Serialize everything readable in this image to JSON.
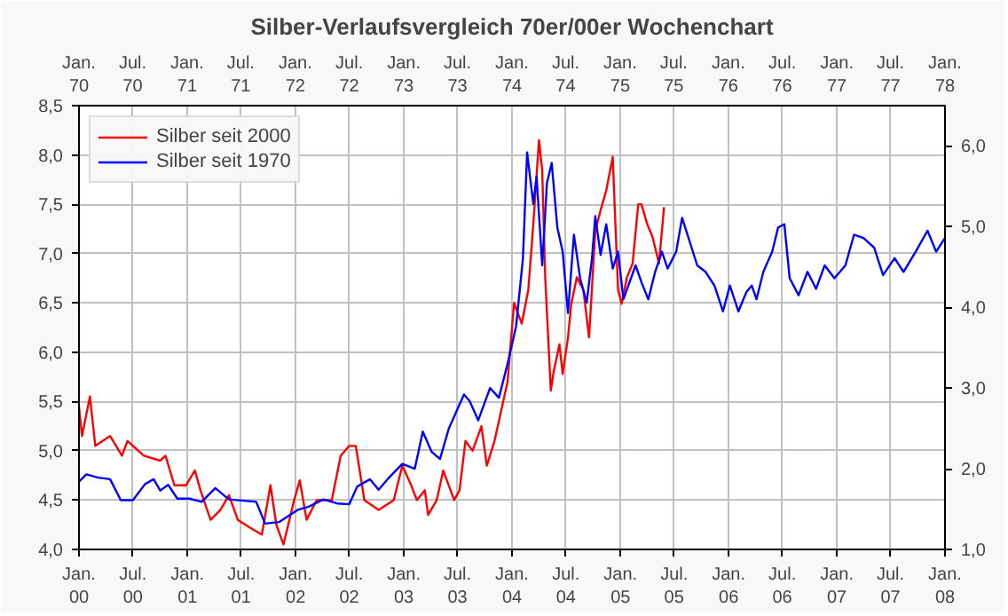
{
  "chart_data": {
    "type": "line",
    "title": "Silber-Verlaufsvergleich 70er/00er Wochenchart",
    "xlim": [
      "2000-01",
      "2008-01"
    ],
    "xticks": [
      {
        "value": "2000-01",
        "label": "Jan.\n00"
      },
      {
        "value": "2000-07",
        "label": "Jul.\n00"
      },
      {
        "value": "2001-01",
        "label": "Jan.\n01"
      },
      {
        "value": "2001-07",
        "label": "Jul.\n01"
      },
      {
        "value": "2002-01",
        "label": "Jan.\n02"
      },
      {
        "value": "2002-07",
        "label": "Jul.\n02"
      },
      {
        "value": "2003-01",
        "label": "Jan.\n03"
      },
      {
        "value": "2003-07",
        "label": "Jul.\n03"
      },
      {
        "value": "2004-01",
        "label": "Jan.\n04"
      },
      {
        "value": "2004-07",
        "label": "Jul.\n04"
      },
      {
        "value": "2005-01",
        "label": "Jan.\n05"
      },
      {
        "value": "2005-07",
        "label": "Jul.\n05"
      },
      {
        "value": "2006-01",
        "label": "Jan.\n06"
      },
      {
        "value": "2006-07",
        "label": "Jul.\n06"
      },
      {
        "value": "2007-01",
        "label": "Jan.\n07"
      },
      {
        "value": "2007-07",
        "label": "Jul.\n07"
      },
      {
        "value": "2008-01",
        "label": "Jan.\n08"
      }
    ],
    "x2lim": [
      "1970-01",
      "1978-01"
    ],
    "x2ticks": [
      {
        "value": "1970-01",
        "label": "Jan.\n70"
      },
      {
        "value": "1970-07",
        "label": "Jul.\n70"
      },
      {
        "value": "1971-01",
        "label": "Jan.\n71"
      },
      {
        "value": "1971-07",
        "label": "Jul.\n71"
      },
      {
        "value": "1972-01",
        "label": "Jan.\n72"
      },
      {
        "value": "1972-07",
        "label": "Jul.\n72"
      },
      {
        "value": "1973-01",
        "label": "Jan.\n73"
      },
      {
        "value": "1973-07",
        "label": "Jul.\n73"
      },
      {
        "value": "1974-01",
        "label": "Jan.\n74"
      },
      {
        "value": "1974-07",
        "label": "Jul.\n74"
      },
      {
        "value": "1975-01",
        "label": "Jan.\n75"
      },
      {
        "value": "1975-07",
        "label": "Jul.\n75"
      },
      {
        "value": "1976-01",
        "label": "Jan.\n76"
      },
      {
        "value": "1976-07",
        "label": "Jul.\n76"
      },
      {
        "value": "1977-01",
        "label": "Jan.\n77"
      },
      {
        "value": "1977-07",
        "label": "Jul.\n77"
      },
      {
        "value": "1978-01",
        "label": "Jan.\n78"
      }
    ],
    "ylim": [
      4.0,
      8.5
    ],
    "yticks": [
      {
        "value": 4.0,
        "label": "4,0"
      },
      {
        "value": 4.5,
        "label": "4,5"
      },
      {
        "value": 5.0,
        "label": "5,0"
      },
      {
        "value": 5.5,
        "label": "5,5"
      },
      {
        "value": 6.0,
        "label": "6,0"
      },
      {
        "value": 6.5,
        "label": "6,5"
      },
      {
        "value": 7.0,
        "label": "7,0"
      },
      {
        "value": 7.5,
        "label": "7,5"
      },
      {
        "value": 8.0,
        "label": "8,0"
      },
      {
        "value": 8.5,
        "label": "8,5"
      }
    ],
    "y2lim": [
      1.0,
      6.5
    ],
    "y2ticks": [
      {
        "value": 1.0,
        "label": "1,0"
      },
      {
        "value": 2.0,
        "label": "2,0"
      },
      {
        "value": 3.0,
        "label": "3,0"
      },
      {
        "value": 4.0,
        "label": "4,0"
      },
      {
        "value": 5.0,
        "label": "5,0"
      },
      {
        "value": 6.0,
        "label": "6,0"
      }
    ],
    "grid": true,
    "legend": "top left",
    "line_style": "solid",
    "series": [
      {
        "name": "Silber seit 2000",
        "color": "#ff0000",
        "x": [
          "2000-01-01",
          "2000-01-11",
          "2000-02-07",
          "2000-02-25",
          "2000-04-15",
          "2000-05-25",
          "2000-06-13",
          "2000-08-07",
          "2000-10-01",
          "2000-10-19",
          "2000-11-18",
          "2000-12-27",
          "2001-01-26",
          "2001-02-14",
          "2001-03-20",
          "2001-04-22",
          "2001-05-21",
          "2001-06-20",
          "2001-08-11",
          "2001-09-09",
          "2001-10-08",
          "2001-10-28",
          "2001-11-21",
          "2001-12-27",
          "2002-01-15",
          "2002-02-07",
          "2002-03-13",
          "2002-05-03",
          "2002-06-02",
          "2002-07-01",
          "2002-07-23",
          "2002-08-21",
          "2002-10-08",
          "2002-11-28",
          "2002-12-27",
          "2003-01-26",
          "2003-02-14",
          "2003-03-13",
          "2003-03-24",
          "2003-04-22",
          "2003-05-14",
          "2003-06-20",
          "2003-07-08",
          "2003-07-28",
          "2003-08-21",
          "2003-09-20",
          "2003-10-08",
          "2003-11-03",
          "2003-11-25",
          "2003-12-17",
          "2004-01-08",
          "2004-02-03",
          "2004-02-25",
          "2004-03-13",
          "2004-04-01",
          "2004-04-12",
          "2004-04-22",
          "2004-05-11",
          "2004-05-21",
          "2004-06-09",
          "2004-06-20",
          "2004-07-08",
          "2004-07-19",
          "2004-08-07",
          "2004-08-29",
          "2004-09-17",
          "2004-10-08",
          "2004-10-26",
          "2004-11-14",
          "2004-12-06",
          "2004-12-13",
          "2004-12-24",
          "2005-01-05",
          "2005-01-23",
          "2005-02-11",
          "2005-03-02",
          "2005-03-13",
          "2005-04-01",
          "2005-04-19",
          "2005-05-11",
          "2005-05-28"
        ],
        "values": [
          5.45,
          5.15,
          5.55,
          5.05,
          5.15,
          4.95,
          5.1,
          4.95,
          4.9,
          4.95,
          4.65,
          4.65,
          4.8,
          4.6,
          4.3,
          4.4,
          4.55,
          4.3,
          4.2,
          4.15,
          4.65,
          4.25,
          4.05,
          4.5,
          4.7,
          4.3,
          4.5,
          4.5,
          4.95,
          5.05,
          5.05,
          4.5,
          4.4,
          4.5,
          4.85,
          4.65,
          4.5,
          4.6,
          4.35,
          4.5,
          4.8,
          4.5,
          4.6,
          5.1,
          5.0,
          5.25,
          4.85,
          5.1,
          5.4,
          5.7,
          6.5,
          6.29,
          6.63,
          7.3,
          8.15,
          7.84,
          6.76,
          5.61,
          5.81,
          6.08,
          5.78,
          6.15,
          6.49,
          6.76,
          6.63,
          6.15,
          7.23,
          7.44,
          7.64,
          7.98,
          7.44,
          6.63,
          6.49,
          6.76,
          6.9,
          7.5,
          7.5,
          7.3,
          7.17,
          6.9,
          7.47
        ]
      },
      {
        "name": "Silber seit 1970",
        "color": "#0000ff",
        "axis": "y2",
        "x": [
          "2000-01-01",
          "2000-01-26",
          "2000-03-06",
          "2000-04-15",
          "2000-05-21",
          "2000-07-01",
          "2000-08-11",
          "2000-09-09",
          "2000-10-01",
          "2000-10-28",
          "2000-11-28",
          "2001-01-08",
          "2001-02-18",
          "2001-04-05",
          "2001-05-21",
          "2001-08-21",
          "2001-09-20",
          "2001-11-07",
          "2002-01-08",
          "2002-02-14",
          "2002-04-05",
          "2002-05-21",
          "2002-07-01",
          "2002-07-28",
          "2002-09-09",
          "2002-10-08",
          "2002-11-07",
          "2002-12-27",
          "2003-02-07",
          "2003-03-06",
          "2003-04-05",
          "2003-05-03",
          "2003-06-02",
          "2003-07-23",
          "2003-08-11",
          "2003-09-09",
          "2003-10-19",
          "2003-11-18",
          "2003-12-17",
          "2004-01-15",
          "2004-02-07",
          "2004-02-21",
          "2004-03-13",
          "2004-03-24",
          "2004-04-12",
          "2004-04-28",
          "2004-05-14",
          "2004-06-02",
          "2004-06-20",
          "2004-07-08",
          "2004-07-28",
          "2004-08-18",
          "2004-09-09",
          "2004-09-27",
          "2004-10-08",
          "2004-10-26",
          "2004-11-14",
          "2004-12-06",
          "2004-12-24",
          "2005-01-11",
          "2005-02-21",
          "2005-03-13",
          "2005-04-05",
          "2005-04-28",
          "2005-05-21",
          "2005-06-09",
          "2005-07-08",
          "2005-07-28",
          "2005-08-29",
          "2005-09-17",
          "2005-10-15",
          "2005-11-14",
          "2005-12-13",
          "2006-01-05",
          "2006-02-03",
          "2006-03-02",
          "2006-03-20",
          "2006-04-05",
          "2006-04-28",
          "2006-05-28",
          "2006-06-17",
          "2006-07-08",
          "2006-07-26",
          "2006-08-25",
          "2006-09-24",
          "2006-10-23",
          "2006-11-21",
          "2006-12-24",
          "2007-01-30",
          "2007-02-28",
          "2007-04-01",
          "2007-05-07",
          "2007-06-06",
          "2007-07-15",
          "2007-08-14",
          "2007-09-24",
          "2007-11-03",
          "2007-12-02",
          "2008-01-01"
        ],
        "values": [
          1.84,
          1.93,
          1.89,
          1.87,
          1.61,
          1.61,
          1.81,
          1.87,
          1.73,
          1.8,
          1.63,
          1.63,
          1.59,
          1.76,
          1.62,
          1.59,
          1.32,
          1.34,
          1.49,
          1.53,
          1.62,
          1.57,
          1.56,
          1.78,
          1.87,
          1.74,
          1.87,
          2.06,
          2.0,
          2.46,
          2.21,
          2.12,
          2.5,
          2.92,
          2.84,
          2.6,
          3.0,
          2.88,
          3.3,
          3.77,
          4.61,
          5.92,
          5.28,
          5.62,
          4.52,
          5.54,
          5.79,
          4.99,
          4.69,
          3.93,
          4.9,
          4.36,
          4.06,
          4.61,
          5.13,
          4.65,
          5.03,
          4.48,
          4.69,
          4.1,
          4.52,
          4.31,
          4.1,
          4.44,
          4.69,
          4.48,
          4.69,
          5.11,
          4.74,
          4.52,
          4.44,
          4.27,
          3.95,
          4.27,
          3.95,
          4.19,
          4.27,
          4.1,
          4.44,
          4.69,
          4.99,
          5.03,
          4.36,
          4.15,
          4.44,
          4.23,
          4.52,
          4.36,
          4.52,
          4.9,
          4.86,
          4.74,
          4.4,
          4.61,
          4.44,
          4.69,
          4.95,
          4.69,
          4.86
        ]
      }
    ]
  }
}
